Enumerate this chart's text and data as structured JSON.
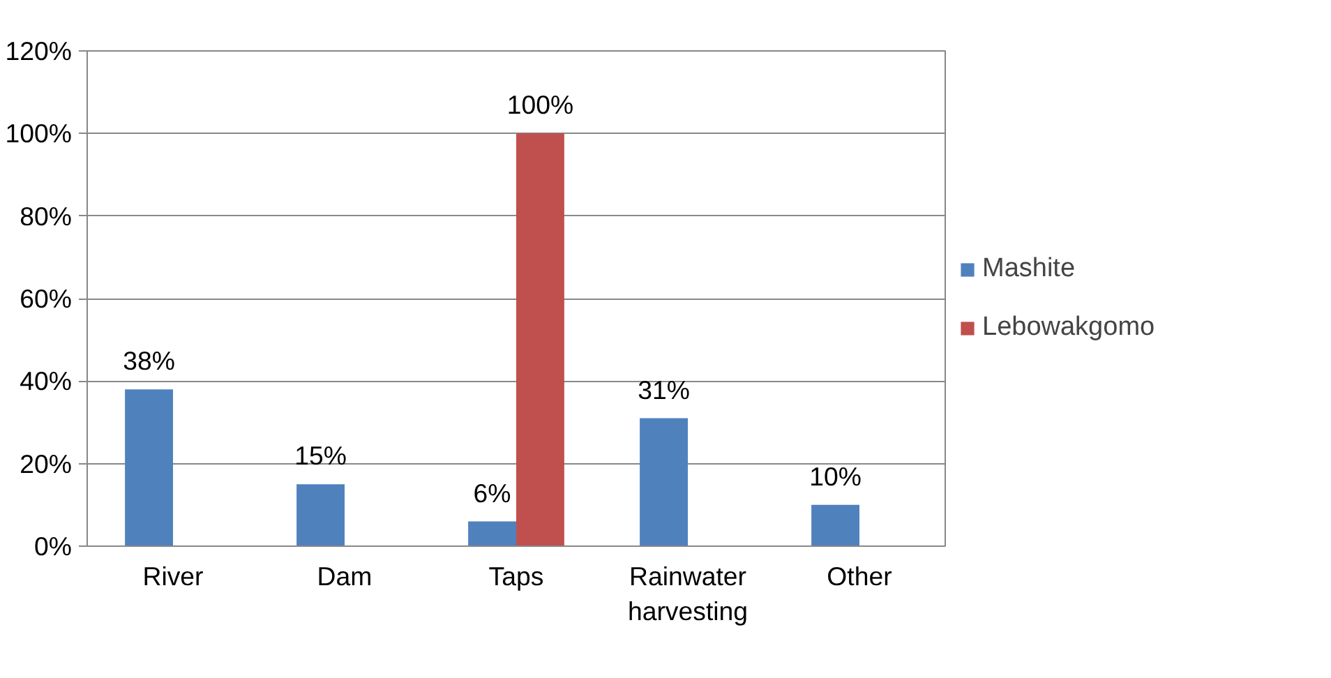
{
  "chart_data": {
    "type": "bar",
    "categories": [
      "River",
      "Dam",
      "Taps",
      "Rainwater harvesting",
      "Other"
    ],
    "series": [
      {
        "name": "Mashite",
        "color": "#4f81bd",
        "values": [
          38,
          15,
          6,
          31,
          10
        ],
        "value_labels": [
          "38%",
          "15%",
          "6%",
          "31%",
          "10%"
        ]
      },
      {
        "name": "Lebowakgomo",
        "color": "#c0504d",
        "values": [
          null,
          null,
          100,
          null,
          null
        ],
        "value_labels": [
          null,
          null,
          "100%",
          null,
          null
        ]
      }
    ],
    "ylim": [
      0,
      120
    ],
    "yticks": [
      {
        "value": 0,
        "label": "0%"
      },
      {
        "value": 20,
        "label": "20%"
      },
      {
        "value": 40,
        "label": "40%"
      },
      {
        "value": 60,
        "label": "60%"
      },
      {
        "value": 80,
        "label": "80%"
      },
      {
        "value": 100,
        "label": "100%"
      },
      {
        "value": 120,
        "label": "120%"
      }
    ],
    "grid": "y",
    "legend": "right"
  }
}
